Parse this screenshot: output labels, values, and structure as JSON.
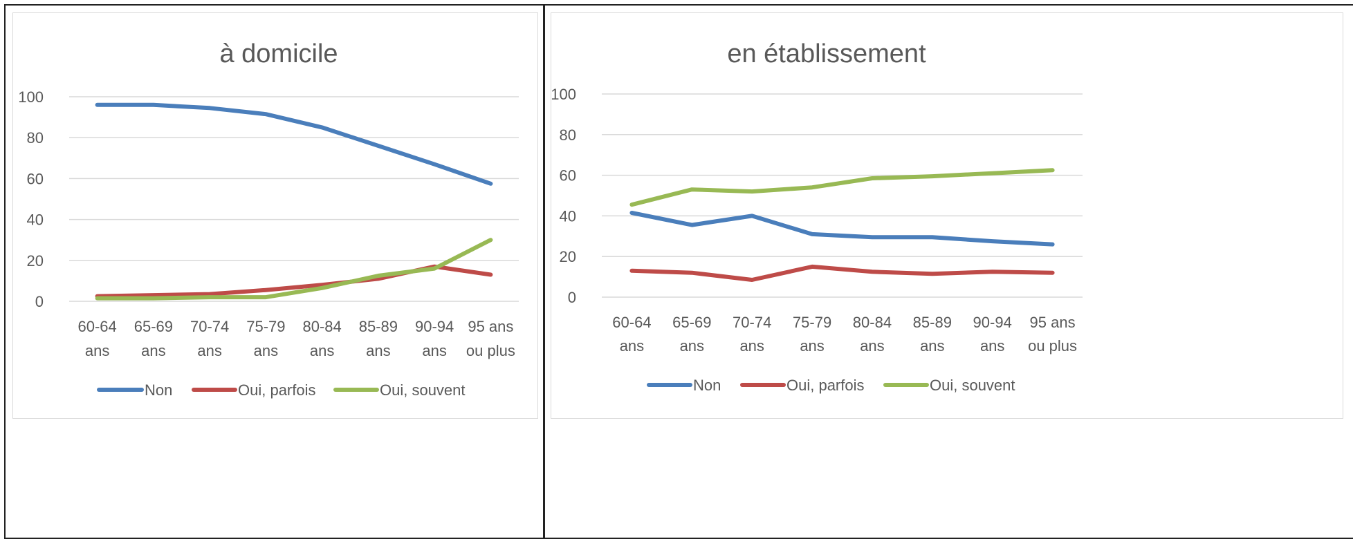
{
  "colors": {
    "Non": "#4a7ebb",
    "Oui, parfois": "#be4b48",
    "Oui, souvent": "#98b954",
    "grid": "#d9d9d9",
    "text": "#595959"
  },
  "chart_data": [
    {
      "type": "line",
      "title": "à domicile",
      "xlabel": "",
      "ylabel": "",
      "ylim": [
        0,
        100
      ],
      "yticks": [
        0,
        20,
        40,
        60,
        80,
        100
      ],
      "categories": [
        [
          "60-64",
          "ans"
        ],
        [
          "65-69",
          "ans"
        ],
        [
          "70-74",
          "ans"
        ],
        [
          "75-79",
          "ans"
        ],
        [
          "80-84",
          "ans"
        ],
        [
          "85-89",
          "ans"
        ],
        [
          "90-94",
          "ans"
        ],
        [
          "95 ans",
          "ou plus"
        ]
      ],
      "series": [
        {
          "name": "Non",
          "values": [
            96,
            96,
            94.5,
            91.5,
            85,
            76,
            67,
            57.5
          ]
        },
        {
          "name": "Oui, parfois",
          "values": [
            2.5,
            3,
            3.5,
            5.5,
            8,
            11,
            17,
            13
          ]
        },
        {
          "name": "Oui, souvent",
          "values": [
            1.5,
            1.5,
            2,
            2,
            6.5,
            12.5,
            16,
            30
          ]
        }
      ],
      "grid": true,
      "legend": "bottom"
    },
    {
      "type": "line",
      "title": "en établissement",
      "xlabel": "",
      "ylabel": "",
      "ylim": [
        0,
        100
      ],
      "yticks": [
        0,
        20,
        40,
        60,
        80,
        100
      ],
      "categories": [
        [
          "60-64",
          "ans"
        ],
        [
          "65-69",
          "ans"
        ],
        [
          "70-74",
          "ans"
        ],
        [
          "75-79",
          "ans"
        ],
        [
          "80-84",
          "ans"
        ],
        [
          "85-89",
          "ans"
        ],
        [
          "90-94",
          "ans"
        ],
        [
          "95 ans",
          "ou plus"
        ]
      ],
      "series": [
        {
          "name": "Non",
          "values": [
            41.5,
            35.5,
            40,
            31,
            29.5,
            29.5,
            27.5,
            26
          ]
        },
        {
          "name": "Oui, parfois",
          "values": [
            13,
            12,
            8.5,
            15,
            12.5,
            11.5,
            12.5,
            12
          ]
        },
        {
          "name": "Oui, souvent",
          "values": [
            45.5,
            53,
            52,
            54,
            58.5,
            59.5,
            61,
            62.5
          ]
        }
      ],
      "grid": true,
      "legend": "bottom"
    }
  ]
}
